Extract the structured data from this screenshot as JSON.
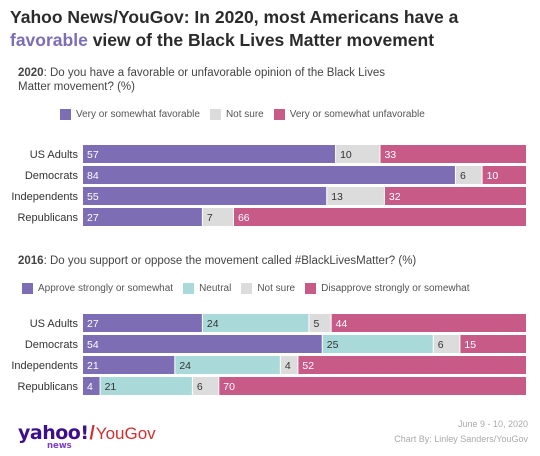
{
  "title": {
    "part1": "Yahoo News/YouGov: In 2020, most Americans have a",
    "highlight": "favorable",
    "part2": "view of the Black Lives Matter movement"
  },
  "colors": {
    "favorable": "#7d6db5",
    "neutral": "#a9dad9",
    "not_sure": "#dcdcdc",
    "unfavorable": "#c85a87"
  },
  "chart_data": [
    {
      "type": "bar",
      "orientation": "horizontal-stacked",
      "year": "2020",
      "question": ": Do you have a favorable or unfavorable opinion of the Black Lives Matter movement? (%)",
      "categories": [
        "US Adults",
        "Democrats",
        "Independents",
        "Republicans"
      ],
      "series": [
        {
          "name": "Very or somewhat favorable",
          "color_key": "favorable",
          "values": [
            57,
            84,
            55,
            27
          ]
        },
        {
          "name": "Not sure",
          "color_key": "not_sure",
          "values": [
            10,
            6,
            13,
            7
          ]
        },
        {
          "name": "Very or somewhat unfavorable",
          "color_key": "unfavorable",
          "values": [
            33,
            10,
            32,
            66
          ]
        }
      ]
    },
    {
      "type": "bar",
      "orientation": "horizontal-stacked",
      "year": "2016",
      "question": ": Do you support or oppose the movement called #BlackLivesMatter? (%)",
      "categories": [
        "US Adults",
        "Democrats",
        "Independents",
        "Republicans"
      ],
      "series": [
        {
          "name": "Approve strongly or somewhat",
          "color_key": "favorable",
          "values": [
            27,
            54,
            21,
            4
          ]
        },
        {
          "name": "Neutral",
          "color_key": "neutral",
          "values": [
            24,
            25,
            24,
            21
          ]
        },
        {
          "name": "Not sure",
          "color_key": "not_sure",
          "values": [
            5,
            6,
            4,
            6
          ]
        },
        {
          "name": "Disapprove strongly or somewhat",
          "color_key": "unfavorable",
          "values": [
            44,
            15,
            52,
            70
          ]
        }
      ]
    }
  ],
  "logo": {
    "yahoo": "yahoo!",
    "news": "news",
    "slash": "/",
    "yougov": "YouGov"
  },
  "footer": {
    "date": "June 9 - 10, 2020",
    "credit": "Chart By: Linley Sanders/YouGov"
  }
}
